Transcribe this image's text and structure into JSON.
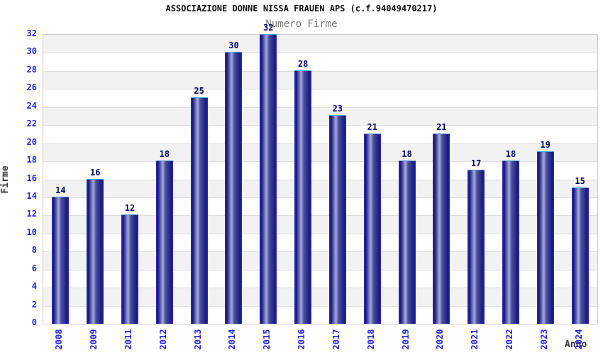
{
  "chart_data": {
    "type": "bar",
    "title": "ASSOCIAZIONE DONNE NISSA FRAUEN APS (c.f.94049470217)",
    "subtitle": "Numero Firme",
    "xlabel": "Anno",
    "ylabel": "Firme",
    "categories": [
      "2008",
      "2009",
      "2011",
      "2012",
      "2013",
      "2014",
      "2015",
      "2016",
      "2017",
      "2018",
      "2019",
      "2020",
      "2021",
      "2022",
      "2023",
      "2024"
    ],
    "values": [
      14,
      16,
      12,
      18,
      25,
      30,
      32,
      28,
      23,
      21,
      18,
      21,
      17,
      18,
      19,
      15
    ],
    "ylim": [
      0,
      32
    ],
    "ytick_step": 2,
    "grid": true,
    "legend": false,
    "band_fill": "alternating gray/white every 2 units, gray at top",
    "colors": {
      "bar_dark": "#1b1b80",
      "bar_mid": "#4a519e",
      "bar_highlight": "#a3abdc",
      "bar_edge": "#2d2dd2",
      "bar_top_edge": "#5b9bd5",
      "tick_label": "#2222dd",
      "value_label": "#00006a",
      "band_gray": "#f2f2f2",
      "grid_line": "#dddddd",
      "title_color": "#111111",
      "subtitle_color": "#7a7a7a",
      "axis_title_color": "#3a3a3a"
    }
  }
}
